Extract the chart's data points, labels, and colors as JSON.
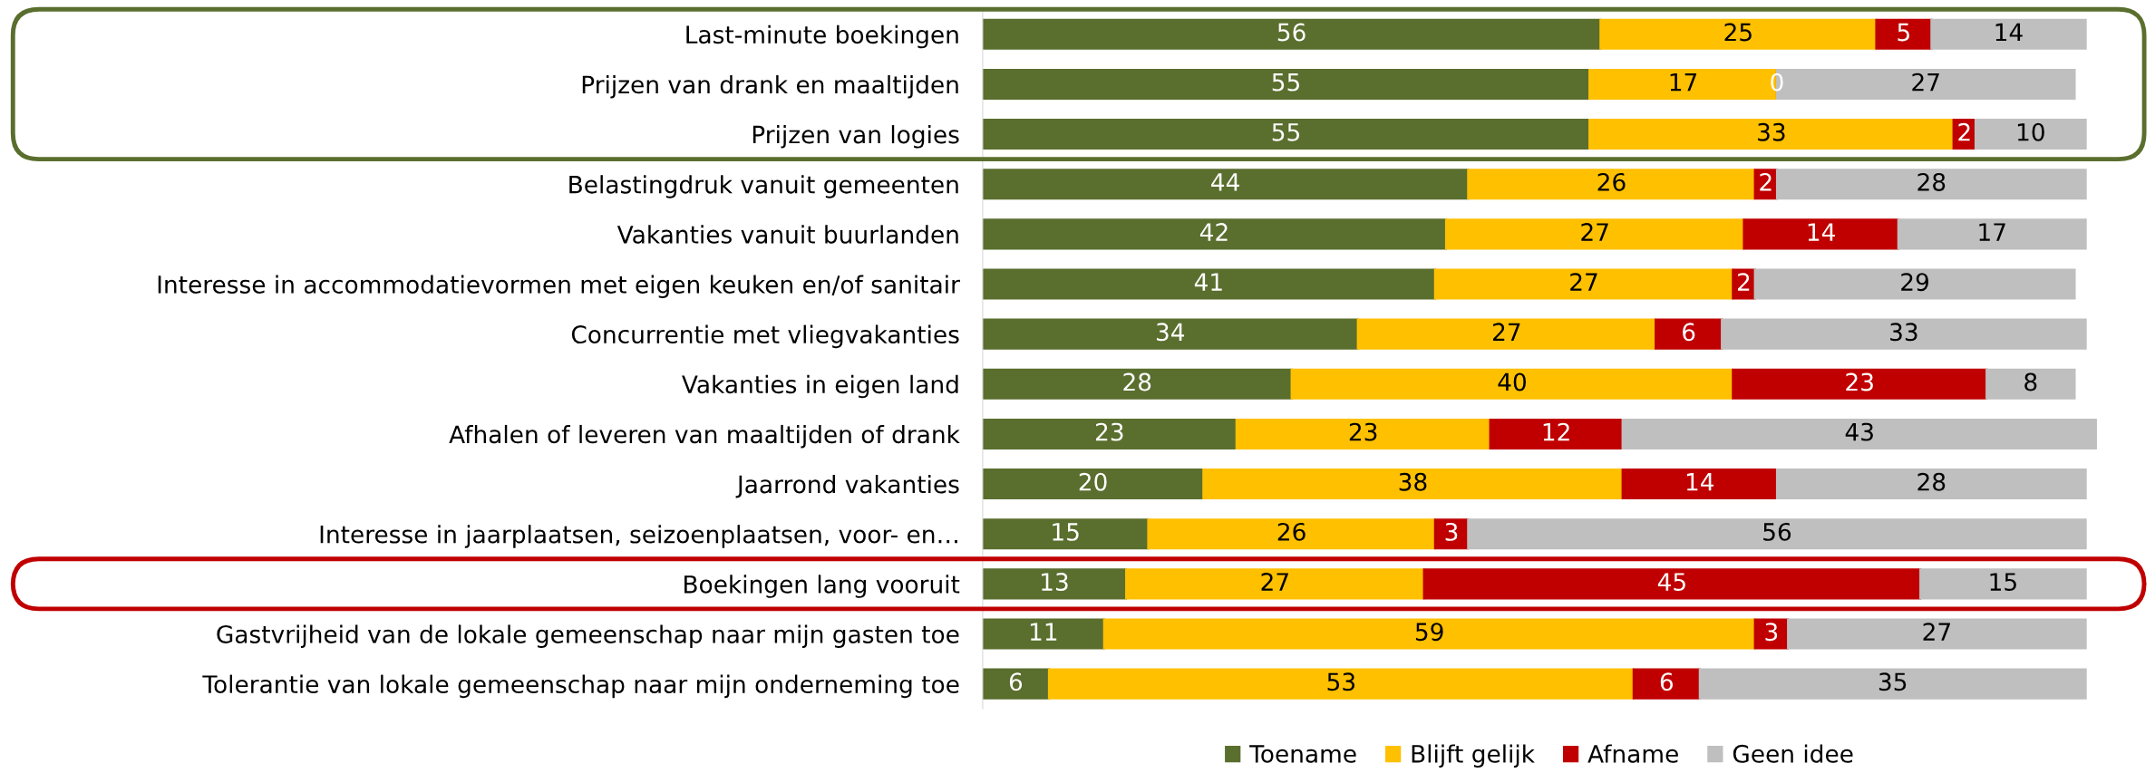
{
  "chart_data": {
    "type": "bar",
    "orientation": "horizontal",
    "stacked": true,
    "data_labels": true,
    "legend": "bottom",
    "grid": false,
    "categories": [
      "Last-minute boekingen",
      "Prijzen van drank en maaltijden",
      "Prijzen van logies",
      "Belastingdruk vanuit gemeenten",
      "Vakanties vanuit buurlanden",
      "Interesse in accommodatievormen met eigen keuken en/of sanitair",
      "Concurrentie met vliegvakanties",
      "Vakanties in eigen land",
      "Afhalen of leveren van maaltijden of drank",
      "Jaarrond vakanties",
      "Interesse in jaarplaatsen, seizoenplaatsen, voor- en…",
      "Boekingen lang vooruit",
      "Gastvrijheid van de lokale gemeenschap naar mijn gasten toe",
      "Tolerantie van lokale gemeenschap naar mijn onderneming toe"
    ],
    "series": [
      {
        "name": "Toename",
        "color": "#5a6e2e",
        "values": [
          56,
          55,
          55,
          44,
          42,
          41,
          34,
          28,
          23,
          20,
          15,
          13,
          11,
          6
        ]
      },
      {
        "name": "Blijft gelijk",
        "color": "#ffc000",
        "values": [
          25,
          17,
          33,
          26,
          27,
          27,
          27,
          40,
          23,
          38,
          26,
          27,
          59,
          53
        ]
      },
      {
        "name": "Afname",
        "color": "#c00000",
        "values": [
          5,
          0,
          2,
          2,
          14,
          2,
          6,
          23,
          12,
          14,
          3,
          45,
          3,
          6
        ]
      },
      {
        "name": "Geen idee",
        "color": "#bfbfbf",
        "values": [
          14,
          27,
          10,
          28,
          17,
          29,
          33,
          8,
          43,
          28,
          56,
          15,
          27,
          35
        ]
      }
    ]
  }
}
